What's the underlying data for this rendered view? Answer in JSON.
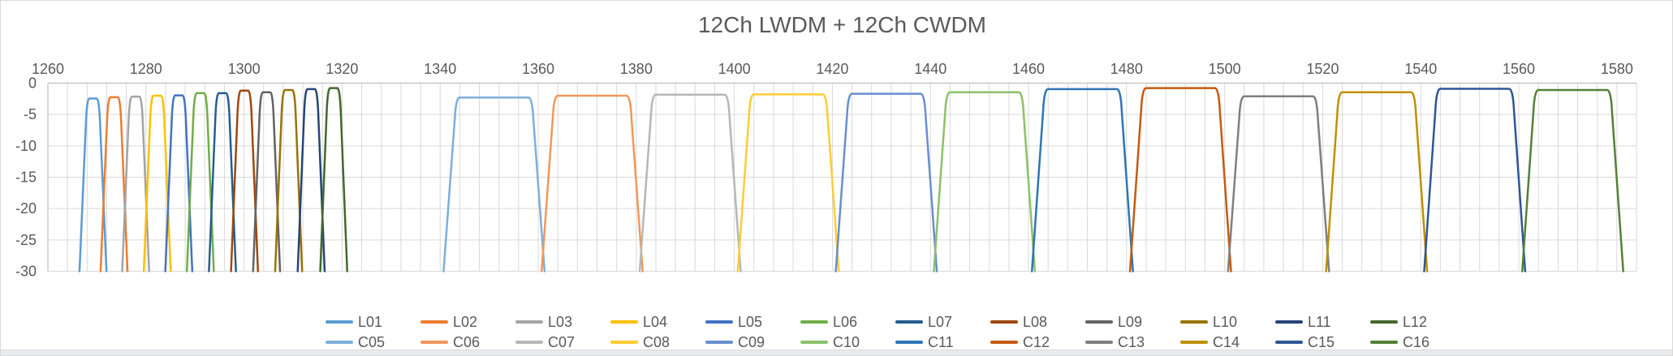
{
  "chart_data": {
    "type": "line",
    "title": "12Ch LWDM + 12Ch CWDM",
    "x_axis": {
      "label_position": "top",
      "min": 1260,
      "max": 1584,
      "major_unit": 20,
      "minor_gridline_unit": 4,
      "ticks": [
        1260,
        1280,
        1300,
        1320,
        1340,
        1360,
        1380,
        1400,
        1420,
        1440,
        1460,
        1480,
        1500,
        1520,
        1540,
        1560,
        1580
      ],
      "unit": "nm"
    },
    "y_axis": {
      "min": -30,
      "max": 0,
      "major_unit": 5,
      "ticks": [
        0,
        -5,
        -10,
        -15,
        -20,
        -25,
        -30
      ],
      "unit": "dB",
      "grid": true
    },
    "filter_shape_groups": {
      "LWDM": {
        "flat_halfwidth_nm": 1.3,
        "base_halfwidth_nm": 2.75,
        "corner_nm": 0.55
      },
      "CWDM": {
        "flat_halfwidth_nm": 7.9,
        "base_halfwidth_nm": 10.3,
        "corner_nm": 0.9
      }
    },
    "series": [
      {
        "name": "L01",
        "group": "LWDM",
        "color": "#5B9BD5",
        "center_nm": 1269.2,
        "peak_db": -2.45
      },
      {
        "name": "L02",
        "group": "LWDM",
        "color": "#ED7D31",
        "center_nm": 1273.5,
        "peak_db": -2.25
      },
      {
        "name": "L03",
        "group": "LWDM",
        "color": "#A5A5A5",
        "center_nm": 1277.9,
        "peak_db": -2.15
      },
      {
        "name": "L04",
        "group": "LWDM",
        "color": "#FFC000",
        "center_nm": 1282.3,
        "peak_db": -2.0
      },
      {
        "name": "L05",
        "group": "LWDM",
        "color": "#4472C4",
        "center_nm": 1286.7,
        "peak_db": -1.95
      },
      {
        "name": "L06",
        "group": "LWDM",
        "color": "#70AD47",
        "center_nm": 1291.1,
        "peak_db": -1.6
      },
      {
        "name": "L07",
        "group": "LWDM",
        "color": "#255E91",
        "center_nm": 1295.6,
        "peak_db": -1.6
      },
      {
        "name": "L08",
        "group": "LWDM",
        "color": "#9E480E",
        "center_nm": 1300.1,
        "peak_db": -1.2
      },
      {
        "name": "L09",
        "group": "LWDM",
        "color": "#636363",
        "center_nm": 1304.6,
        "peak_db": -1.45
      },
      {
        "name": "L10",
        "group": "LWDM",
        "color": "#997300",
        "center_nm": 1309.1,
        "peak_db": -1.1
      },
      {
        "name": "L11",
        "group": "LWDM",
        "color": "#264478",
        "center_nm": 1313.7,
        "peak_db": -0.95
      },
      {
        "name": "L12",
        "group": "LWDM",
        "color": "#43682B",
        "center_nm": 1318.3,
        "peak_db": -0.8
      },
      {
        "name": "C05",
        "group": "CWDM",
        "color": "#7CAFDD",
        "center_nm": 1351,
        "peak_db": -2.3
      },
      {
        "name": "C06",
        "group": "CWDM",
        "color": "#F1975A",
        "center_nm": 1371,
        "peak_db": -2.0
      },
      {
        "name": "C07",
        "group": "CWDM",
        "color": "#B7B7B7",
        "center_nm": 1391,
        "peak_db": -1.85
      },
      {
        "name": "C08",
        "group": "CWDM",
        "color": "#FFCD33",
        "center_nm": 1411,
        "peak_db": -1.8
      },
      {
        "name": "C09",
        "group": "CWDM",
        "color": "#698ED0",
        "center_nm": 1431,
        "peak_db": -1.7
      },
      {
        "name": "C10",
        "group": "CWDM",
        "color": "#8CC168",
        "center_nm": 1451,
        "peak_db": -1.45
      },
      {
        "name": "C11",
        "group": "CWDM",
        "color": "#2E75B6",
        "center_nm": 1471,
        "peak_db": -0.95
      },
      {
        "name": "C12",
        "group": "CWDM",
        "color": "#C55A11",
        "center_nm": 1491,
        "peak_db": -0.8
      },
      {
        "name": "C13",
        "group": "CWDM",
        "color": "#7F7F7F",
        "center_nm": 1511,
        "peak_db": -2.1
      },
      {
        "name": "C14",
        "group": "CWDM",
        "color": "#BF9000",
        "center_nm": 1531,
        "peak_db": -1.45
      },
      {
        "name": "C15",
        "group": "CWDM",
        "color": "#2F5597",
        "center_nm": 1551,
        "peak_db": -0.9
      },
      {
        "name": "C16",
        "group": "CWDM",
        "color": "#538135",
        "center_nm": 1571,
        "peak_db": -1.1
      }
    ],
    "legend": {
      "position": "bottom",
      "rows": [
        [
          "L01",
          "L02",
          "L03",
          "L04",
          "L05",
          "L06",
          "L07",
          "L08",
          "L09",
          "L10",
          "L11",
          "L12"
        ],
        [
          "C05",
          "C06",
          "C07",
          "C08",
          "C09",
          "C10",
          "C11",
          "C12",
          "C13",
          "C14",
          "C15",
          "C16"
        ]
      ]
    }
  },
  "style": {
    "grid_color": "#D9D9D9",
    "axis_line_color": "#BFBFBF",
    "text_color": "#595959",
    "background": "#FFFFFF",
    "border_color": "#D9D9D9",
    "bottom_strip_color": "#E8EBEE"
  }
}
